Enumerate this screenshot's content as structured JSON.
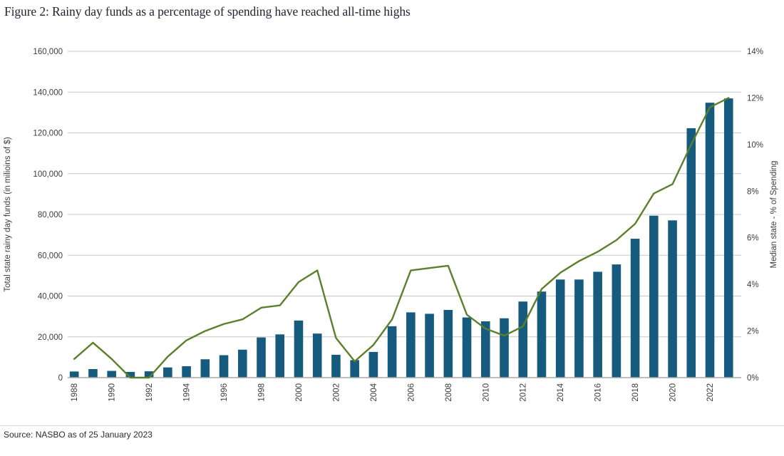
{
  "title": "Figure 2: Rainy day funds as a percentage of spending have reached all-time highs",
  "source": "Source: NASBO as of 25 January 2023",
  "colors": {
    "bar": "#165A7D",
    "line": "#5C7F2B",
    "grid": "#C7C7C7",
    "baseline": "#A8A8A8",
    "axis_text": "#3D3D3D",
    "title_text": "#1D2230"
  },
  "chart_data": {
    "type": "bar",
    "subtype": "bar-plus-line-dual-axis",
    "x": [
      1988,
      1989,
      1990,
      1991,
      1992,
      1993,
      1994,
      1995,
      1996,
      1997,
      1998,
      1999,
      2000,
      2001,
      2002,
      2003,
      2004,
      2005,
      2006,
      2007,
      2008,
      2009,
      2010,
      2011,
      2012,
      2013,
      2014,
      2015,
      2016,
      2017,
      2018,
      2019,
      2020,
      2021,
      2022,
      2023
    ],
    "series": [
      {
        "name": "Total state rainy day funds",
        "type": "bar",
        "axis": "left",
        "values": [
          3000,
          4200,
          3300,
          2800,
          3100,
          5000,
          5600,
          9000,
          11000,
          13700,
          19700,
          21200,
          28000,
          21600,
          11200,
          8600,
          12600,
          25200,
          32000,
          31300,
          33200,
          29500,
          27600,
          29100,
          37300,
          42200,
          48100,
          48100,
          51900,
          55500,
          68100,
          79400,
          77100,
          122300,
          134800,
          136900
        ]
      },
      {
        "name": "Median state - % of Spending",
        "type": "line",
        "axis": "right",
        "values": [
          0.8,
          1.5,
          0.8,
          0.0,
          0.0,
          0.9,
          1.6,
          2.0,
          2.3,
          2.5,
          3.0,
          3.1,
          4.1,
          4.6,
          1.7,
          0.7,
          1.4,
          2.5,
          4.6,
          4.7,
          4.8,
          2.7,
          2.1,
          1.8,
          2.2,
          3.8,
          4.5,
          5.0,
          5.4,
          5.9,
          6.6,
          7.9,
          8.3,
          10.0,
          11.6,
          12.0
        ]
      }
    ],
    "left_axis": {
      "label": "Total state rainy day funds (in milioins of $)",
      "min": 0,
      "max": 160000,
      "tick_step": 20000,
      "tick_labels": [
        "0",
        "20,000",
        "40,000",
        "60,000",
        "80,000",
        "100,000",
        "120,000",
        "140,000",
        "160,000"
      ]
    },
    "right_axis": {
      "label": "Median state - % of Spending",
      "min": 0,
      "max": 14,
      "tick_step": 2,
      "tick_labels": [
        "0%",
        "2%",
        "4%",
        "6%",
        "8%",
        "10%",
        "12%",
        "14%"
      ]
    },
    "x_axis": {
      "tick_labels": [
        "1988",
        "1990",
        "1992",
        "1994",
        "1996",
        "1998",
        "2000",
        "2002",
        "2004",
        "2006",
        "2008",
        "2010",
        "2012",
        "2014",
        "2016",
        "2018",
        "2020",
        "2022"
      ],
      "label_rotation_deg": -90
    },
    "grid": true,
    "legend": "none"
  }
}
